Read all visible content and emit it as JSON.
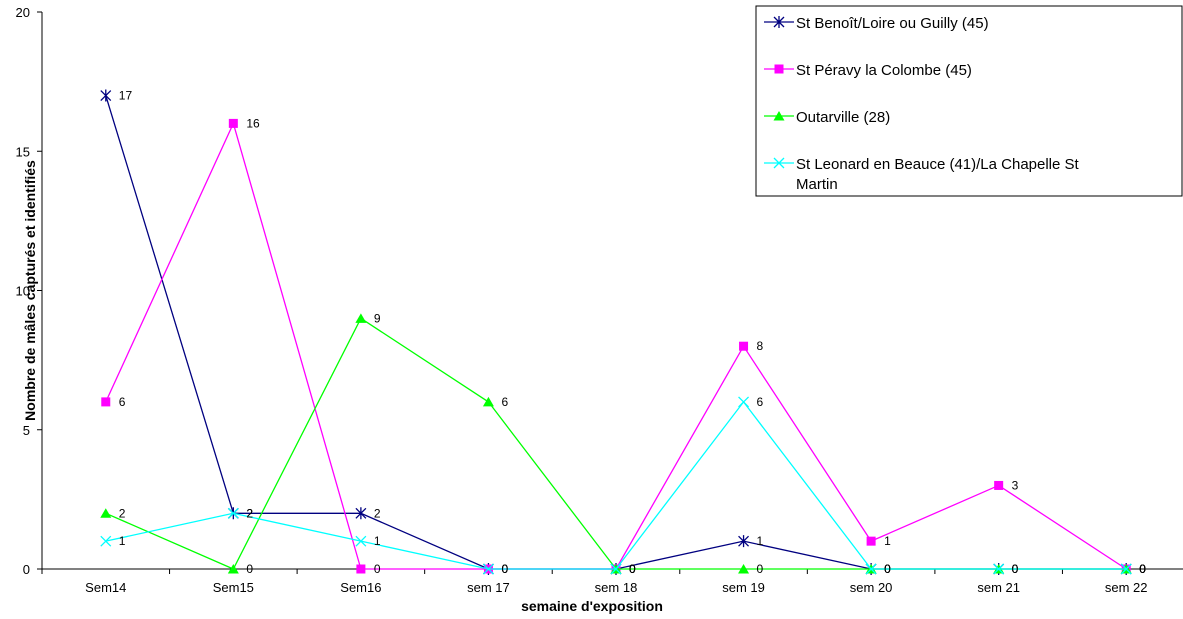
{
  "chart_data": {
    "type": "line",
    "xlabel": "semaine d'exposition",
    "ylabel": "Nombre de mâles capturés et identifiés",
    "ylim": [
      0,
      20
    ],
    "yticks": [
      0,
      5,
      10,
      15,
      20
    ],
    "grid": false,
    "legend_position": "top-right",
    "categories": [
      "Sem14",
      "Sem15",
      "Sem16",
      "sem 17",
      "sem 18",
      "sem 19",
      "sem 20",
      "sem 21",
      "sem 22"
    ],
    "series": [
      {
        "name": "St Benoît/Loire ou Guilly (45)",
        "color": "#000080",
        "marker": "asterisk",
        "values": [
          17,
          2,
          2,
          0,
          0,
          1,
          0,
          0,
          0
        ]
      },
      {
        "name": "St Péravy la Colombe (45)",
        "color": "#ff00ff",
        "marker": "square",
        "values": [
          6,
          16,
          0,
          0,
          0,
          8,
          1,
          3,
          0
        ]
      },
      {
        "name": "Outarville (28)",
        "color": "#00ff00",
        "marker": "triangle",
        "values": [
          2,
          0,
          9,
          6,
          0,
          0,
          0,
          0,
          0
        ]
      },
      {
        "name": "St Leonard en Beauce (41)/La Chapelle St Martin",
        "color": "#00ffff",
        "marker": "cross",
        "values": [
          1,
          2,
          1,
          0,
          0,
          6,
          0,
          0,
          0
        ]
      }
    ]
  }
}
